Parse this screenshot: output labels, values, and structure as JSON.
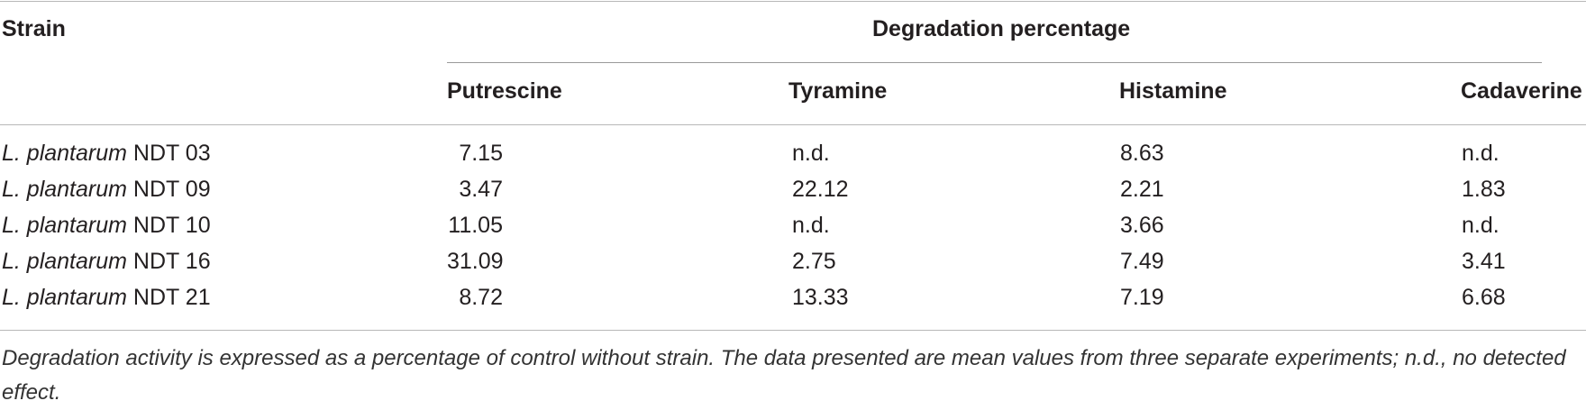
{
  "table": {
    "header": {
      "strain": "Strain",
      "group": "Degradation percentage",
      "columns": [
        "Putrescine",
        "Tyramine",
        "Histamine",
        "Cadaverine"
      ]
    },
    "rows": [
      {
        "species": "L. plantarum",
        "strain": " NDT 03",
        "values": [
          "7.15",
          "n.d.",
          "8.63",
          "n.d."
        ]
      },
      {
        "species": "L. plantarum",
        "strain": " NDT 09",
        "values": [
          "3.47",
          "22.12",
          "2.21",
          "1.83"
        ]
      },
      {
        "species": "L. plantarum",
        "strain": " NDT 10",
        "values": [
          "11.05",
          "n.d.",
          "3.66",
          "n.d."
        ]
      },
      {
        "species": "L. plantarum",
        "strain": " NDT 16",
        "values": [
          "31.09",
          "2.75",
          "7.49",
          "3.41"
        ]
      },
      {
        "species": "L. plantarum",
        "strain": " NDT 21",
        "values": [
          "8.72",
          "13.33",
          "7.19",
          "6.68"
        ]
      }
    ],
    "footnote": "Degradation activity is expressed as a percentage of control without strain. The data presented are mean values from three separate experiments; n.d., no detected effect."
  }
}
